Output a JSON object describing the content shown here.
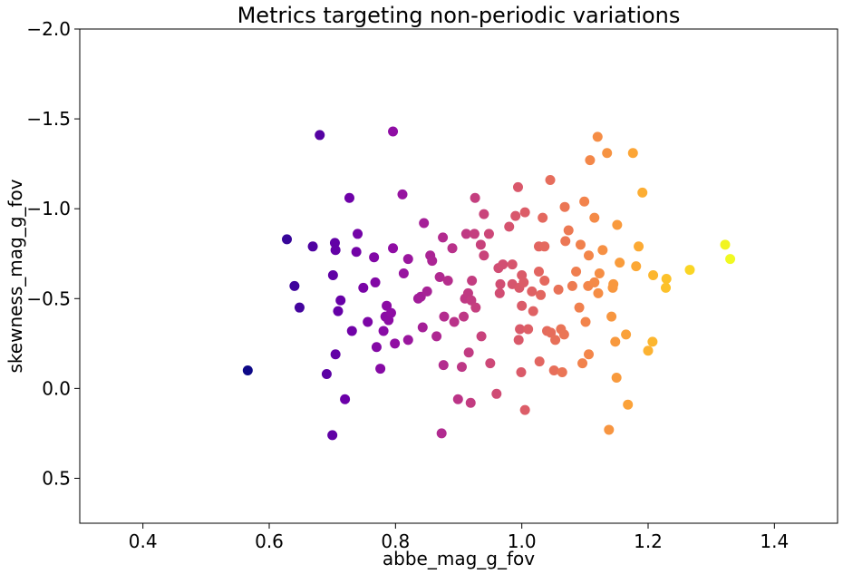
{
  "chart_data": {
    "type": "scatter",
    "title": "Metrics targeting non-periodic variations",
    "xlabel": "abbe_mag_g_fov",
    "ylabel": "skewness_mag_g_fov",
    "xlim": [
      0.3,
      1.5
    ],
    "ylim": [
      0.75,
      -2.0
    ],
    "y_inverted": true,
    "grid": false,
    "legend": "none",
    "colormap": "plasma",
    "color_by": "x",
    "x_ticks": [
      0.4,
      0.6,
      0.8,
      1.0,
      1.2,
      1.4
    ],
    "x_tick_labels": [
      "0.4",
      "0.6",
      "0.8",
      "1.0",
      "1.2",
      "1.4"
    ],
    "y_ticks": [
      -2.0,
      -1.5,
      -1.0,
      -0.5,
      0.0,
      0.5
    ],
    "y_tick_labels": [
      "−2.0",
      "−1.5",
      "−1.0",
      "−0.5",
      "0.0",
      "0.5"
    ],
    "points": [
      [
        0.566,
        -0.1
      ],
      [
        0.628,
        -0.83
      ],
      [
        0.64,
        -0.57
      ],
      [
        0.648,
        -0.45
      ],
      [
        0.669,
        -0.79
      ],
      [
        0.68,
        -1.41
      ],
      [
        0.691,
        -0.08
      ],
      [
        0.7,
        0.26
      ],
      [
        0.701,
        -0.63
      ],
      [
        0.704,
        -0.81
      ],
      [
        0.705,
        -0.19
      ],
      [
        0.705,
        -0.77
      ],
      [
        0.709,
        -0.43
      ],
      [
        0.713,
        -0.49
      ],
      [
        0.72,
        0.06
      ],
      [
        0.727,
        -1.06
      ],
      [
        0.731,
        -0.32
      ],
      [
        0.738,
        -0.76
      ],
      [
        0.74,
        -0.86
      ],
      [
        0.749,
        -0.56
      ],
      [
        0.756,
        -0.37
      ],
      [
        0.766,
        -0.73
      ],
      [
        0.768,
        -0.59
      ],
      [
        0.77,
        -0.23
      ],
      [
        0.776,
        -0.11
      ],
      [
        0.781,
        -0.32
      ],
      [
        0.784,
        -0.4
      ],
      [
        0.786,
        -0.46
      ],
      [
        0.789,
        -0.38
      ],
      [
        0.793,
        -0.42
      ],
      [
        0.796,
        -1.43
      ],
      [
        0.796,
        -0.78
      ],
      [
        0.799,
        -0.25
      ],
      [
        0.811,
        -1.08
      ],
      [
        0.813,
        -0.64
      ],
      [
        0.82,
        -0.72
      ],
      [
        0.82,
        -0.27
      ],
      [
        0.836,
        -0.5
      ],
      [
        0.84,
        -0.51
      ],
      [
        0.843,
        -0.34
      ],
      [
        0.845,
        -0.92
      ],
      [
        0.85,
        -0.54
      ],
      [
        0.855,
        -0.74
      ],
      [
        0.858,
        -0.71
      ],
      [
        0.865,
        -0.29
      ],
      [
        0.87,
        -0.62
      ],
      [
        0.873,
        0.25
      ],
      [
        0.875,
        -0.84
      ],
      [
        0.876,
        -0.13
      ],
      [
        0.877,
        -0.4
      ],
      [
        0.883,
        -0.6
      ],
      [
        0.89,
        -0.78
      ],
      [
        0.893,
        -0.37
      ],
      [
        0.899,
        0.06
      ],
      [
        0.905,
        -0.12
      ],
      [
        0.908,
        -0.4
      ],
      [
        0.91,
        -0.5
      ],
      [
        0.912,
        -0.86
      ],
      [
        0.915,
        -0.53
      ],
      [
        0.916,
        -0.2
      ],
      [
        0.919,
        0.08
      ],
      [
        0.92,
        -0.49
      ],
      [
        0.921,
        -0.6
      ],
      [
        0.925,
        -0.86
      ],
      [
        0.926,
        -1.06
      ],
      [
        0.927,
        -0.45
      ],
      [
        0.935,
        -0.8
      ],
      [
        0.936,
        -0.29
      ],
      [
        0.94,
        -0.74
      ],
      [
        0.94,
        -0.97
      ],
      [
        0.948,
        -0.86
      ],
      [
        0.95,
        -0.14
      ],
      [
        0.96,
        0.03
      ],
      [
        0.963,
        -0.67
      ],
      [
        0.965,
        -0.53
      ],
      [
        0.966,
        -0.58
      ],
      [
        0.97,
        -0.69
      ],
      [
        0.98,
        -0.9
      ],
      [
        0.985,
        -0.69
      ],
      [
        0.985,
        -0.58
      ],
      [
        0.99,
        -0.96
      ],
      [
        0.994,
        -1.12
      ],
      [
        0.995,
        -0.27
      ],
      [
        0.996,
        -0.56
      ],
      [
        0.997,
        -0.33
      ],
      [
        0.999,
        -0.09
      ],
      [
        1.0,
        -0.63
      ],
      [
        1.0,
        -0.46
      ],
      [
        1.003,
        -0.59
      ],
      [
        1.005,
        -0.98
      ],
      [
        1.005,
        0.12
      ],
      [
        1.01,
        -0.33
      ],
      [
        1.016,
        -0.54
      ],
      [
        1.018,
        -0.43
      ],
      [
        1.027,
        -0.79
      ],
      [
        1.027,
        -0.65
      ],
      [
        1.028,
        -0.15
      ],
      [
        1.03,
        -0.52
      ],
      [
        1.033,
        -0.95
      ],
      [
        1.036,
        -0.6
      ],
      [
        1.036,
        -0.79
      ],
      [
        1.04,
        -0.32
      ],
      [
        1.045,
        -1.16
      ],
      [
        1.046,
        -0.31
      ],
      [
        1.051,
        -0.1
      ],
      [
        1.053,
        -0.27
      ],
      [
        1.058,
        -0.55
      ],
      [
        1.062,
        -0.33
      ],
      [
        1.064,
        -0.09
      ],
      [
        1.067,
        -0.3
      ],
      [
        1.068,
        -1.01
      ],
      [
        1.069,
        -0.82
      ],
      [
        1.074,
        -0.88
      ],
      [
        1.08,
        -0.57
      ],
      [
        1.086,
        -0.65
      ],
      [
        1.091,
        -0.45
      ],
      [
        1.093,
        -0.8
      ],
      [
        1.096,
        -0.14
      ],
      [
        1.099,
        -1.04
      ],
      [
        1.101,
        -0.37
      ],
      [
        1.105,
        -0.57
      ],
      [
        1.106,
        -0.74
      ],
      [
        1.106,
        -0.19
      ],
      [
        1.108,
        -1.27
      ],
      [
        1.115,
        -0.95
      ],
      [
        1.115,
        -0.59
      ],
      [
        1.12,
        -1.4
      ],
      [
        1.121,
        -0.53
      ],
      [
        1.123,
        -0.64
      ],
      [
        1.128,
        -0.77
      ],
      [
        1.135,
        -1.31
      ],
      [
        1.138,
        0.23
      ],
      [
        1.142,
        -0.4
      ],
      [
        1.144,
        -0.56
      ],
      [
        1.145,
        -0.58
      ],
      [
        1.148,
        -0.26
      ],
      [
        1.15,
        -0.06
      ],
      [
        1.151,
        -0.91
      ],
      [
        1.155,
        -0.7
      ],
      [
        1.165,
        -0.3
      ],
      [
        1.168,
        0.09
      ],
      [
        1.176,
        -1.31
      ],
      [
        1.181,
        -0.68
      ],
      [
        1.185,
        -0.79
      ],
      [
        1.191,
        -1.09
      ],
      [
        1.2,
        -0.21
      ],
      [
        1.207,
        -0.26
      ],
      [
        1.208,
        -0.63
      ],
      [
        1.228,
        -0.56
      ],
      [
        1.229,
        -0.61
      ],
      [
        1.266,
        -0.66
      ],
      [
        1.322,
        -0.8
      ],
      [
        1.33,
        -0.72
      ]
    ]
  }
}
